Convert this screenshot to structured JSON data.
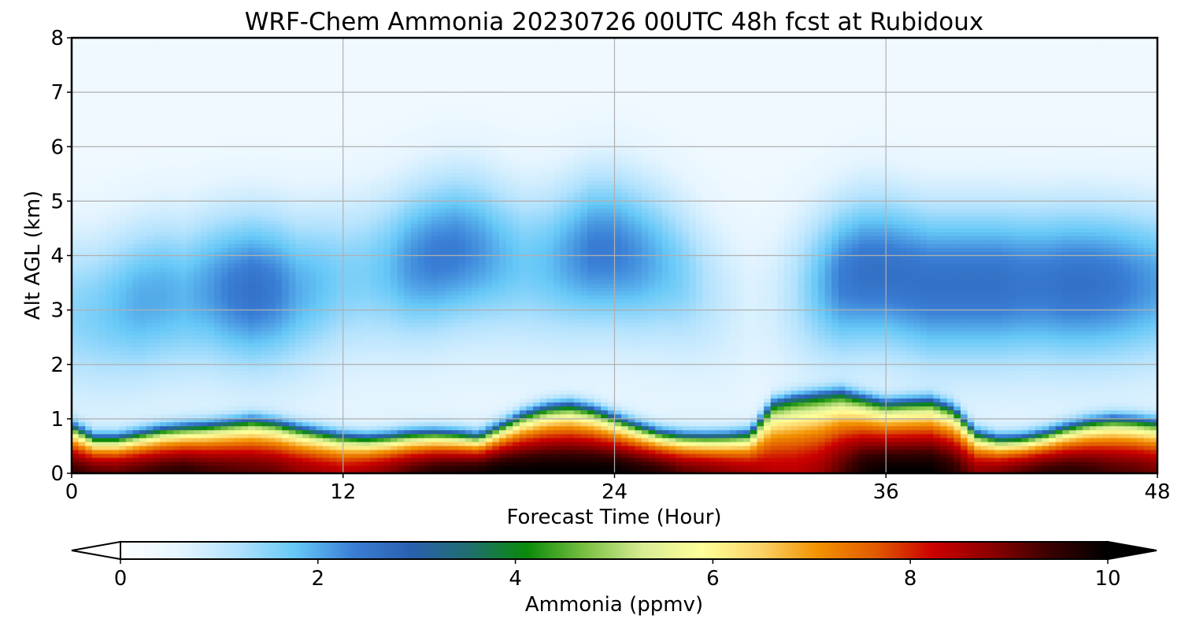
{
  "chart_data": {
    "type": "heatmap",
    "title": "WRF-Chem Ammonia  20230726 00UTC 48h fcst at Rubidoux",
    "xlabel": "Forecast Time (Hour)",
    "ylabel": "Alt AGL (km)",
    "xlim": [
      0,
      48
    ],
    "ylim": [
      0,
      8
    ],
    "x_ticks": [
      "0",
      "12",
      "24",
      "36",
      "48"
    ],
    "y_ticks": [
      "0",
      "1",
      "2",
      "3",
      "4",
      "5",
      "6",
      "7",
      "8"
    ],
    "grid": true,
    "colorbar": {
      "label": "Ammonia  (ppmv)",
      "range": [
        0,
        10
      ],
      "ticks": [
        "0",
        "2",
        "4",
        "6",
        "8",
        "10"
      ],
      "extend": "both",
      "colors": [
        "#ffffff",
        "#e6f5ff",
        "#b3e2fd",
        "#66c8f7",
        "#3a7fd6",
        "#2a5fb0",
        "#1f6e6e",
        "#0a8a0a",
        "#7ac142",
        "#d8ec94",
        "#ffff99",
        "#fbd46a",
        "#f39200",
        "#e05a00",
        "#cc0000",
        "#8b0000",
        "#3a0000",
        "#000000"
      ]
    },
    "hours": [
      0,
      1,
      2,
      3,
      4,
      5,
      6,
      7,
      8,
      9,
      10,
      11,
      12,
      13,
      14,
      15,
      16,
      17,
      18,
      19,
      20,
      21,
      22,
      23,
      24,
      25,
      26,
      27,
      28,
      29,
      30,
      31,
      32,
      33,
      34,
      35,
      36,
      37,
      38,
      39,
      40,
      41,
      42,
      43,
      44,
      45,
      46,
      47,
      48
    ],
    "boundary_layer_top_km": [
      0.95,
      0.72,
      0.72,
      0.8,
      0.88,
      0.92,
      0.95,
      1.0,
      1.05,
      1.0,
      0.9,
      0.82,
      0.75,
      0.72,
      0.75,
      0.8,
      0.82,
      0.8,
      0.75,
      0.95,
      1.15,
      1.28,
      1.33,
      1.25,
      1.1,
      0.95,
      0.82,
      0.76,
      0.75,
      0.76,
      0.8,
      1.35,
      1.45,
      1.5,
      1.55,
      1.45,
      1.35,
      1.38,
      1.4,
      1.25,
      0.8,
      0.7,
      0.72,
      0.8,
      0.92,
      1.02,
      1.07,
      1.05,
      1.0
    ],
    "surface_peak_ppmv": [
      9.5,
      9.2,
      9.1,
      9.3,
      9.5,
      9.6,
      9.4,
      9.3,
      9.2,
      9.1,
      8.8,
      8.6,
      8.4,
      8.6,
      8.9,
      9.3,
      9.6,
      9.7,
      9.8,
      10.0,
      10.0,
      10.0,
      10.0,
      10.0,
      10.0,
      9.8,
      9.6,
      9.2,
      9.0,
      8.8,
      8.6,
      8.4,
      8.4,
      8.6,
      9.2,
      9.8,
      10.0,
      10.0,
      10.0,
      9.6,
      8.8,
      8.9,
      9.2,
      9.5,
      9.6,
      9.5,
      9.3,
      9.2,
      9.0
    ],
    "upper_core_ppmv": [
      1.5,
      1.6,
      1.8,
      2.0,
      2.0,
      1.9,
      2.1,
      2.4,
      2.6,
      2.4,
      2.0,
      1.8,
      1.6,
      1.6,
      1.8,
      2.2,
      2.4,
      2.4,
      2.2,
      1.9,
      1.7,
      1.8,
      2.1,
      2.4,
      2.4,
      2.2,
      1.9,
      1.6,
      1.2,
      0.9,
      0.7,
      0.8,
      1.2,
      1.8,
      2.4,
      2.6,
      2.6,
      2.6,
      2.6,
      2.6,
      2.6,
      2.6,
      2.5,
      2.5,
      2.6,
      2.6,
      2.5,
      2.3,
      2.1
    ],
    "upper_core_alt_km": [
      3.0,
      3.0,
      3.1,
      3.2,
      3.3,
      3.3,
      3.4,
      3.4,
      3.4,
      3.4,
      3.4,
      3.5,
      3.6,
      3.7,
      3.8,
      3.9,
      4.0,
      4.1,
      4.1,
      4.0,
      3.9,
      3.9,
      4.0,
      4.1,
      4.1,
      4.0,
      3.9,
      3.7,
      3.5,
      3.3,
      3.2,
      3.3,
      3.4,
      3.5,
      3.6,
      3.7,
      3.7,
      3.6,
      3.5,
      3.5,
      3.5,
      3.5,
      3.5,
      3.5,
      3.5,
      3.5,
      3.5,
      3.5,
      3.5
    ]
  }
}
